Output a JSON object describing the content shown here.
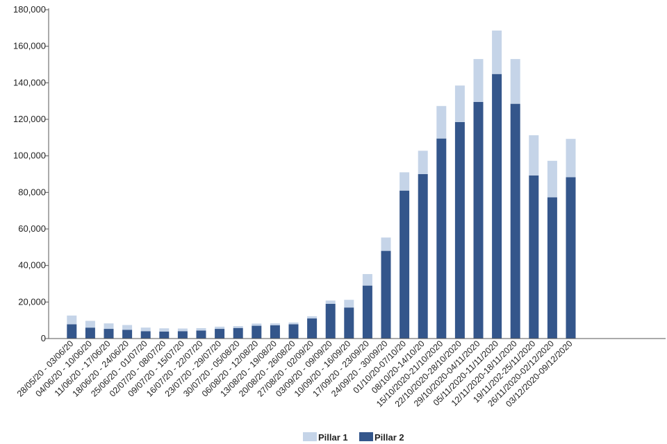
{
  "chart_data": {
    "type": "bar",
    "stacked": true,
    "title": "",
    "xlabel": "",
    "ylabel": "",
    "ylim": [
      0,
      180000
    ],
    "yticks": [
      0,
      20000,
      40000,
      60000,
      80000,
      100000,
      120000,
      140000,
      160000,
      180000
    ],
    "ytick_labels": [
      "0",
      "20,000",
      "40,000",
      "60,000",
      "80,000",
      "100,000",
      "120,000",
      "140,000",
      "160,000",
      "180,000"
    ],
    "grid": false,
    "legend_position": "bottom",
    "categories": [
      "28/05/20 - 03/06/20",
      "04/06/20 - 10/06/20",
      "11/06/20 - 17/06/20",
      "18/06/20 - 24/06/20",
      "25/06/20 - 01/07/20",
      "02/07/20 - 08/07/20",
      "09/07/20 - 15/07/20",
      "16/07/20 - 22/07/20",
      "23/07/20 - 29/07/20",
      "30/07/20 - 05/08/20",
      "06/08/20 - 12/08/20",
      "13/08/20 - 19/08/20",
      "20/08/20 - 26/08/20",
      "27/08/20 - 02/09/20",
      "03/09/20 - 09/09/20",
      "10/09/20 - 16/09/20",
      "17/09/20 - 23/09/20",
      "24/09/20 - 30/09/20",
      "01/10/20-07/10/20",
      "08/10/20-14/10/20",
      "15/10/2020-21/10/2020",
      "22/10/2020-28/10/2020",
      "29/10/2020-04/11/2020",
      "05/11/2020-11/11/2020",
      "12/11/2020-18/11/2020",
      "19/11/202-25/11/2020",
      "26/11/2020-02/12/2020",
      "03/12/2020-09/12/2020"
    ],
    "series": [
      {
        "name": "Pillar 2",
        "color": "#34568b",
        "values": [
          7800,
          6000,
          5300,
          4800,
          4000,
          3800,
          4000,
          4400,
          5300,
          5800,
          7000,
          7300,
          7800,
          11000,
          19000,
          17000,
          29000,
          48000,
          81000,
          90000,
          109500,
          118500,
          129500,
          144800,
          128500,
          89300,
          77300,
          88300
        ]
      },
      {
        "name": "Pillar 1",
        "color": "#c5d4e8",
        "values": [
          4800,
          3700,
          3000,
          2600,
          2000,
          1800,
          1500,
          1300,
          1200,
          1000,
          1200,
          1000,
          1000,
          1200,
          1800,
          4200,
          6300,
          7300,
          10000,
          12800,
          17800,
          20000,
          23500,
          23800,
          24500,
          22000,
          20000,
          21000
        ]
      }
    ],
    "legend": [
      {
        "name": "Pillar 1",
        "color": "#c5d4e8"
      },
      {
        "name": "Pillar 2",
        "color": "#34568b"
      }
    ]
  }
}
